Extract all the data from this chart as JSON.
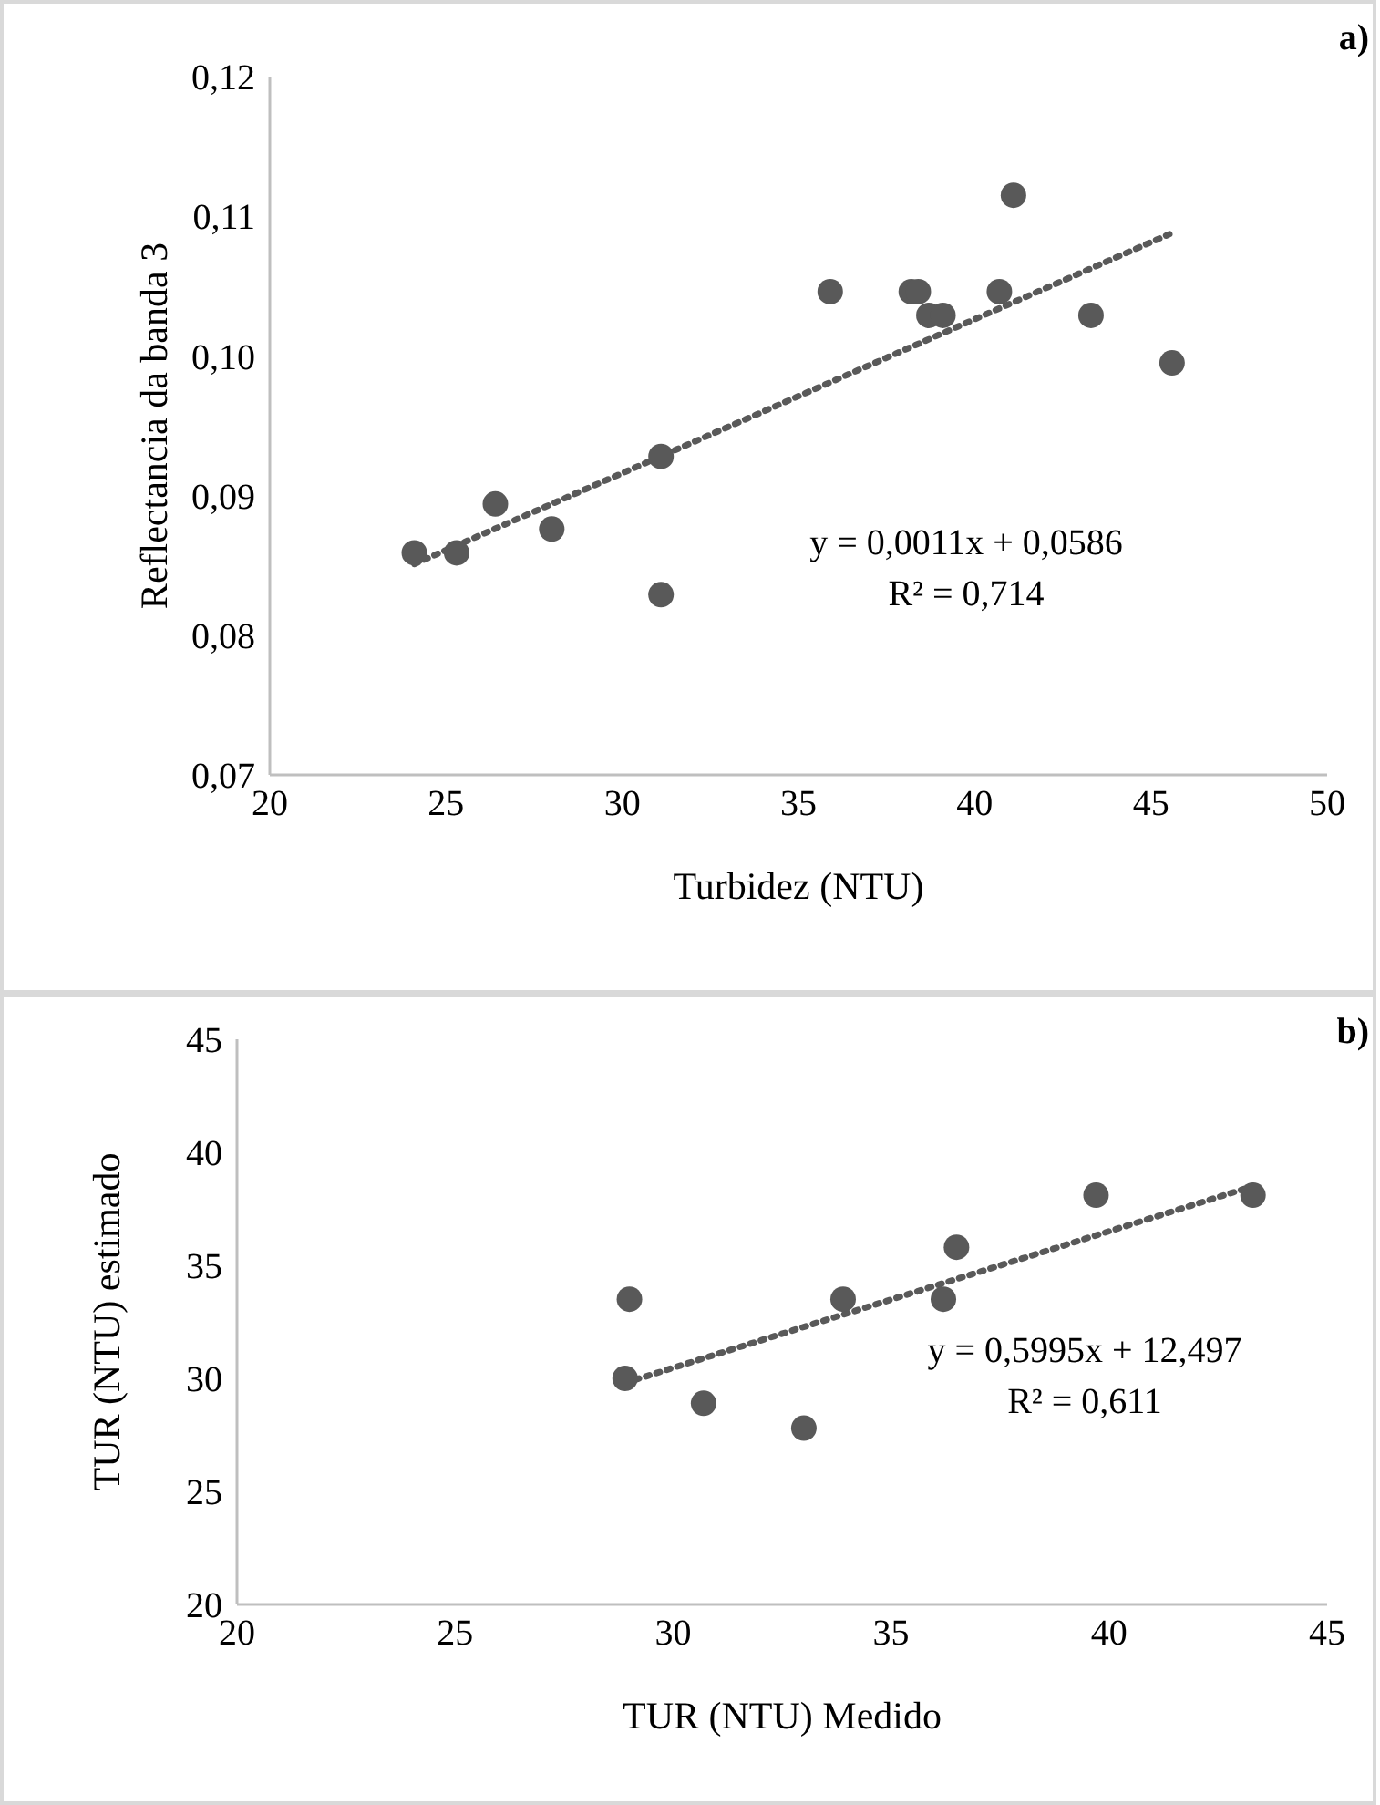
{
  "chart_data": [
    {
      "type": "scatter",
      "xlabel": "Turbidez (NTU)",
      "ylabel": "Reflectancia da banda 3",
      "xlim": [
        20,
        50
      ],
      "xticks": [
        20,
        25,
        30,
        35,
        40,
        45,
        50
      ],
      "ylim": [
        0.07,
        0.12
      ],
      "yticks": [
        {
          "value": 0.07,
          "label": "0,07"
        },
        {
          "value": 0.08,
          "label": "0,08"
        },
        {
          "value": 0.09,
          "label": "0,09"
        },
        {
          "value": 0.1,
          "label": "0,10"
        },
        {
          "value": 0.11,
          "label": "0,11"
        },
        {
          "value": 0.12,
          "label": "0,12"
        }
      ],
      "grid": false,
      "legend": false,
      "annotations": [
        "a)",
        "y = 0,0011x + 0,0586",
        "R² = 0,714"
      ],
      "series": [
        {
          "color": "#595959",
          "marker": "circle",
          "x": [
            24.1,
            25.3,
            26.4,
            28.0,
            31.1,
            31.1,
            35.9,
            38.2,
            38.4,
            38.7,
            39.1,
            40.7,
            41.1,
            43.3,
            45.6
          ],
          "values": [
            0.0859,
            0.0859,
            0.0894,
            0.0876,
            0.0928,
            0.0829,
            0.1046,
            0.1046,
            0.1046,
            0.1029,
            0.1029,
            0.1046,
            0.1115,
            0.1029,
            0.0995
          ]
        },
        {
          "type": "line",
          "color": "#595959",
          "marker": "none",
          "line_style": "dotted",
          "x": [
            24.1,
            45.6
          ],
          "values": [
            0.0851,
            0.1088
          ]
        }
      ]
    },
    {
      "type": "scatter",
      "xlabel": "TUR (NTU) Medido",
      "ylabel": "TUR (NTU) estimado",
      "xlim": [
        20,
        45
      ],
      "xticks": [
        20,
        25,
        30,
        35,
        40,
        45
      ],
      "ylim": [
        20,
        45
      ],
      "yticks": [
        20,
        25,
        30,
        35,
        40,
        45
      ],
      "grid": false,
      "legend": false,
      "annotations": [
        "b)",
        "y = 0,5995x + 12,497",
        "R² = 0,611"
      ],
      "series": [
        {
          "color": "#595959",
          "marker": "circle",
          "x": [
            28.9,
            29.0,
            30.7,
            33.0,
            33.9,
            36.2,
            36.5,
            39.7,
            43.3
          ],
          "values": [
            30.0,
            33.5,
            28.9,
            27.8,
            33.5,
            33.5,
            35.8,
            38.1,
            38.1
          ]
        },
        {
          "type": "line",
          "color": "#595959",
          "marker": "none",
          "line_style": "dotted",
          "x": [
            28.9,
            43.3
          ],
          "values": [
            29.8,
            38.5
          ]
        }
      ]
    }
  ]
}
